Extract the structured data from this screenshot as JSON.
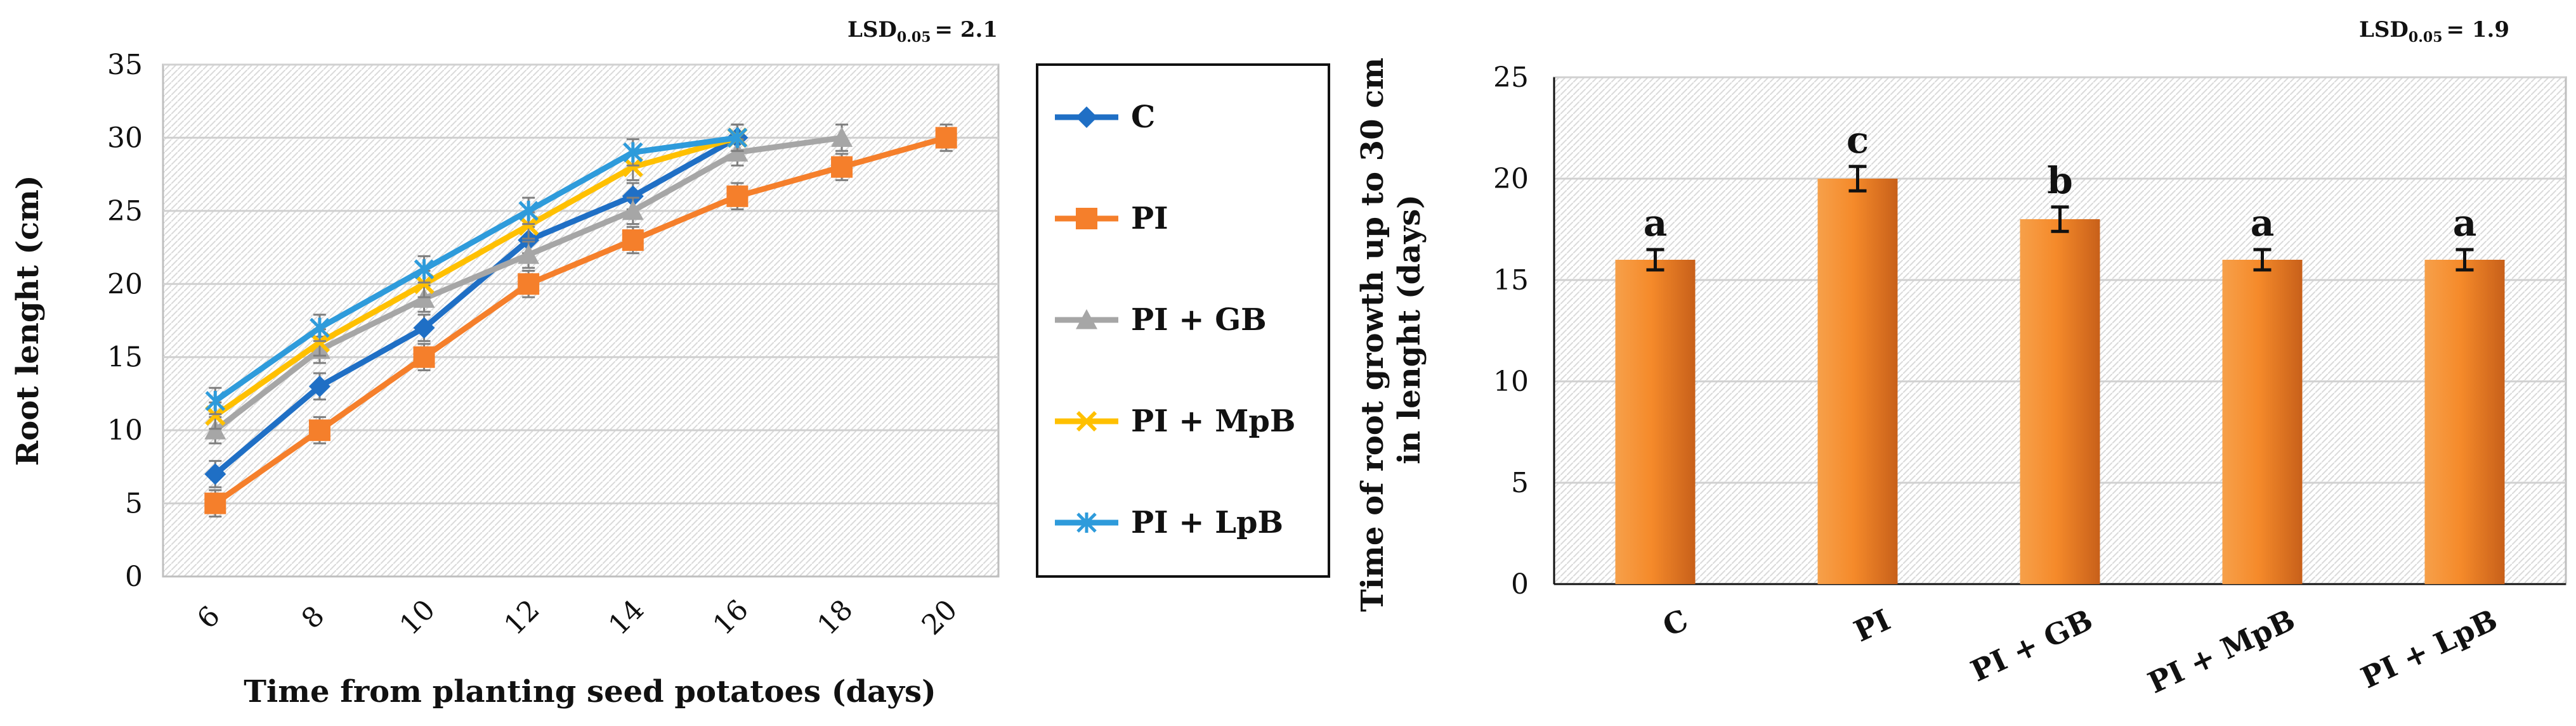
{
  "colors": {
    "C": "#1F6FC5",
    "PI": "#F57F2B",
    "PI + GB": "#A6A6A6",
    "PI + MpB": "#FFC000",
    "PI + LpB": "#2E9BDB",
    "bar": "#F28A2E",
    "grid": "#D0D0D0",
    "axis": "#111111"
  },
  "chart_data": [
    {
      "type": "line",
      "lsd": {
        "prefix": "LSD",
        "sub": "0.05",
        "value": "= 2.1"
      },
      "xlabel": "Time from planting seed potatoes (days)",
      "ylabel": "Root lenght (cm)",
      "ylim": [
        0,
        35
      ],
      "yticks": [
        0,
        5,
        10,
        15,
        20,
        25,
        30,
        35
      ],
      "x": [
        6,
        8,
        10,
        12,
        14,
        16,
        18,
        20
      ],
      "legend_position": "right",
      "series": [
        {
          "name": "C",
          "marker": "diamond",
          "x": [
            6,
            8,
            10,
            12,
            14,
            16
          ],
          "values": [
            7,
            13,
            17,
            23,
            26,
            30
          ],
          "error": 0.9
        },
        {
          "name": "PI",
          "marker": "square",
          "x": [
            6,
            8,
            10,
            12,
            14,
            16,
            18,
            20
          ],
          "values": [
            5,
            10,
            15,
            20,
            23,
            26,
            28,
            30
          ],
          "error": 0.9
        },
        {
          "name": "PI + GB",
          "marker": "triangle",
          "x": [
            6,
            8,
            10,
            12,
            14,
            16,
            18
          ],
          "values": [
            10,
            15.5,
            19,
            22,
            25,
            29,
            30
          ],
          "error": 0.9
        },
        {
          "name": "PI + MpB",
          "marker": "x",
          "x": [
            6,
            8,
            10,
            12,
            14,
            16
          ],
          "values": [
            11,
            16,
            20,
            24,
            28,
            30
          ],
          "error": 0.9
        },
        {
          "name": "PI + LpB",
          "marker": "star",
          "x": [
            6,
            8,
            10,
            12,
            14,
            16
          ],
          "values": [
            12,
            17,
            21,
            25,
            29,
            30
          ],
          "error": 0.9
        }
      ]
    },
    {
      "type": "bar",
      "lsd": {
        "prefix": "LSD",
        "sub": "0.05",
        "value": "= 1.9"
      },
      "xlabel": "",
      "ylabel": [
        "Time of root growth up to 30 cm",
        "in lenght (days)"
      ],
      "ylim": [
        0,
        25
      ],
      "yticks": [
        0,
        5,
        10,
        15,
        20,
        25
      ],
      "categories": [
        "C",
        "PI",
        "PI + GB",
        "PI + MpB",
        "PI + LpB"
      ],
      "values": [
        16,
        20,
        18,
        16,
        16
      ],
      "errors": [
        0.5,
        0.6,
        0.6,
        0.5,
        0.5
      ],
      "letters": [
        "a",
        "c",
        "b",
        "a",
        "a"
      ]
    }
  ]
}
